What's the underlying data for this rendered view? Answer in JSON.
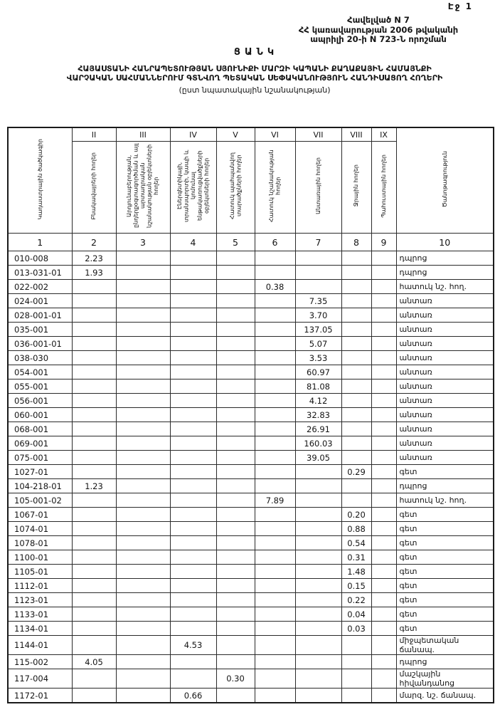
{
  "page": {
    "page_number": "Էջ 1",
    "appendix_line1": "Հավելված N 7",
    "appendix_line2": "ՀՀ կառավարության 2006 թվականի",
    "appendix_line3": "ապրիլի 20-ի N 723-Ն որոշման",
    "title": "ՑԱՆԿ",
    "subtitle_line1": "ՀԱՅԱՍՏԱՆԻ ՀԱՆՐԱՊԵՏՈՒԹՅԱՆ ՍՅՈՒՆԻՔԻ ՄԱՐԶԻ ԿԱՊԱՆԻ ՔԱՂԱՔԱՅԻՆ ՀԱՄԱՅՆՔԻ",
    "subtitle_line2": "ՎԱՐՉԱԿԱՆ ՍԱՀՄԱՆՆԵՐՈՒՄ ԳՏՆՎՈՂ ՊԵՏԱԿԱՆ ՍԵՓԱԿԱՆՈՒԹՅՈՒՆ ՀԱՆԴԻՍԱՑՈՂ ՀՈՂԵՐԻ",
    "subtitle_line3": "(ըստ նպատակային նշանակության)"
  },
  "table": {
    "roman_numerals": [
      "II",
      "III",
      "IV",
      "V",
      "VI",
      "VII",
      "VIII",
      "IX"
    ],
    "column_headers": [
      "Կադաստրային ծածկագիր",
      "Բնակավայրերի հողեր",
      "Արդյունաբերության, ընդերքօգտագործման և այլ արտադրական նշանակության օբյեկտների հողեր",
      "Էներգետիկայի, տրանսպորտի, կապի և կոմունալ ենթակառուցվածքների օբյեկտների հողեր",
      "Հատուկ պահպանվող տարածքների հողեր",
      "Հատուկ նշանակության հողեր",
      "Անտառային հողեր",
      "Ջրային հողեր",
      "Պահուստային հողեր",
      "Ծանոթագրություն"
    ],
    "column_numbers": [
      "1",
      "2",
      "3",
      "4",
      "5",
      "6",
      "7",
      "8",
      "9",
      "10"
    ],
    "rows": [
      [
        "010-008",
        "2.23",
        "",
        "",
        "",
        "",
        "",
        "",
        "",
        "դպրոց"
      ],
      [
        "013-031-01",
        "1.93",
        "",
        "",
        "",
        "",
        "",
        "",
        "",
        "դպրոց"
      ],
      [
        "022-002",
        "",
        "",
        "",
        "",
        "0.38",
        "",
        "",
        "",
        "հատուկ նշ. հող."
      ],
      [
        "024-001",
        "",
        "",
        "",
        "",
        "",
        "7.35",
        "",
        "",
        "անտառ"
      ],
      [
        "028-001-01",
        "",
        "",
        "",
        "",
        "",
        "3.70",
        "",
        "",
        "անտառ"
      ],
      [
        "035-001",
        "",
        "",
        "",
        "",
        "",
        "137.05",
        "",
        "",
        "անտառ"
      ],
      [
        "036-001-01",
        "",
        "",
        "",
        "",
        "",
        "5.07",
        "",
        "",
        "անտառ"
      ],
      [
        "038-030",
        "",
        "",
        "",
        "",
        "",
        "3.53",
        "",
        "",
        "անտառ"
      ],
      [
        "054-001",
        "",
        "",
        "",
        "",
        "",
        "60.97",
        "",
        "",
        "անտառ"
      ],
      [
        "055-001",
        "",
        "",
        "",
        "",
        "",
        "81.08",
        "",
        "",
        "անտառ"
      ],
      [
        "056-001",
        "",
        "",
        "",
        "",
        "",
        "4.12",
        "",
        "",
        "անտառ"
      ],
      [
        "060-001",
        "",
        "",
        "",
        "",
        "",
        "32.83",
        "",
        "",
        "անտառ"
      ],
      [
        "068-001",
        "",
        "",
        "",
        "",
        "",
        "26.91",
        "",
        "",
        "անտառ"
      ],
      [
        "069-001",
        "",
        "",
        "",
        "",
        "",
        "160.03",
        "",
        "",
        "անտառ"
      ],
      [
        "075-001",
        "",
        "",
        "",
        "",
        "",
        "39.05",
        "",
        "",
        "անտառ"
      ],
      [
        "1027-01",
        "",
        "",
        "",
        "",
        "",
        "",
        "0.29",
        "",
        "գետ"
      ],
      [
        "104-218-01",
        "1.23",
        "",
        "",
        "",
        "",
        "",
        "",
        "",
        "դպրոց"
      ],
      [
        "105-001-02",
        "",
        "",
        "",
        "",
        "7.89",
        "",
        "",
        "",
        "հատուկ նշ. հող."
      ],
      [
        "1067-01",
        "",
        "",
        "",
        "",
        "",
        "",
        "0.20",
        "",
        "գետ"
      ],
      [
        "1074-01",
        "",
        "",
        "",
        "",
        "",
        "",
        "0.88",
        "",
        "գետ"
      ],
      [
        "1078-01",
        "",
        "",
        "",
        "",
        "",
        "",
        "0.54",
        "",
        "գետ"
      ],
      [
        "1100-01",
        "",
        "",
        "",
        "",
        "",
        "",
        "0.31",
        "",
        "գետ"
      ],
      [
        "1105-01",
        "",
        "",
        "",
        "",
        "",
        "",
        "1.48",
        "",
        "գետ"
      ],
      [
        "1112-01",
        "",
        "",
        "",
        "",
        "",
        "",
        "0.15",
        "",
        "գետ"
      ],
      [
        "1123-01",
        "",
        "",
        "",
        "",
        "",
        "",
        "0.22",
        "",
        "գետ"
      ],
      [
        "1133-01",
        "",
        "",
        "",
        "",
        "",
        "",
        "0.04",
        "",
        "գետ"
      ],
      [
        "1134-01",
        "",
        "",
        "",
        "",
        "",
        "",
        "0.03",
        "",
        "գետ"
      ],
      [
        "1144-01",
        "",
        "",
        "4.53",
        "",
        "",
        "",
        "",
        "",
        "միջպետական\nճանապ."
      ],
      [
        "115-002",
        "4.05",
        "",
        "",
        "",
        "",
        "",
        "",
        "",
        "դպրոց"
      ],
      [
        "117-004",
        "",
        "",
        "",
        "0.30",
        "",
        "",
        "",
        "",
        "մաշկային\nհիվանդանոց"
      ],
      [
        "1172-01",
        "",
        "",
        "0.66",
        "",
        "",
        "",
        "",
        "",
        "մարզ. նշ. ճանապ."
      ]
    ]
  }
}
